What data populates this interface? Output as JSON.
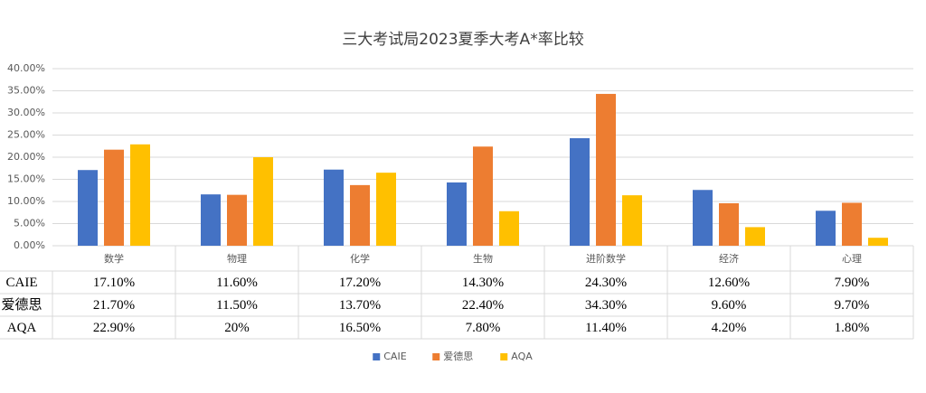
{
  "chart_data": {
    "type": "bar",
    "title": "三大考试局2023夏季大考A*率比较",
    "categories": [
      "数学",
      "物理",
      "化学",
      "生物",
      "进阶数学",
      "经济",
      "心理"
    ],
    "series": [
      {
        "name": "CAIE",
        "color": "#4472c4",
        "values": [
          17.1,
          11.6,
          17.2,
          14.3,
          24.3,
          12.6,
          7.9
        ],
        "value_labels": [
          "17.10%",
          "11.60%",
          "17.20%",
          "14.30%",
          "24.30%",
          "12.60%",
          "7.90%"
        ]
      },
      {
        "name": "爱德思",
        "color": "#ed7d31",
        "values": [
          21.7,
          11.5,
          13.7,
          22.4,
          34.3,
          9.6,
          9.7
        ],
        "value_labels": [
          "21.70%",
          "11.50%",
          "13.70%",
          "22.40%",
          "34.30%",
          "9.60%",
          "9.70%"
        ]
      },
      {
        "name": "AQA",
        "color": "#ffc000",
        "values": [
          22.9,
          20,
          16.5,
          7.8,
          11.4,
          4.2,
          1.8
        ],
        "value_labels": [
          "22.90%",
          "20%",
          "16.50%",
          "7.80%",
          "11.40%",
          "4.20%",
          "1.80%"
        ]
      }
    ],
    "ylim": [
      0,
      40
    ],
    "yticks": [
      {
        "value": 0,
        "label": "0.00%"
      },
      {
        "value": 5,
        "label": "5.00%"
      },
      {
        "value": 10,
        "label": "10.00%"
      },
      {
        "value": 15,
        "label": "15.00%"
      },
      {
        "value": 20,
        "label": "20.00%"
      },
      {
        "value": 25,
        "label": "25.00%"
      },
      {
        "value": 30,
        "label": "30.00%"
      },
      {
        "value": 35,
        "label": "35.00%"
      },
      {
        "value": 40,
        "label": "40.00%"
      }
    ],
    "grid": true,
    "legend": "bottom"
  }
}
